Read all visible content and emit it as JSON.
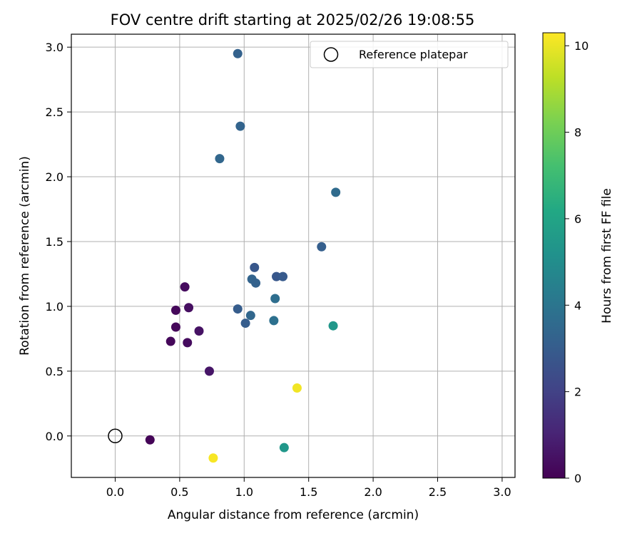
{
  "chart_data": {
    "type": "scatter",
    "title": "FOV centre drift starting at 2025/02/26 19:08:55",
    "xlabel": "Angular distance from reference (arcmin)",
    "ylabel": "Rotation from reference (arcmin)",
    "xlim": [
      -0.34,
      3.1
    ],
    "ylim": [
      -0.32,
      3.1
    ],
    "xticks": [
      "0.0",
      "0.5",
      "1.0",
      "1.5",
      "2.0",
      "2.5",
      "3.0"
    ],
    "yticks": [
      "0.0",
      "0.5",
      "1.0",
      "1.5",
      "2.0",
      "2.5",
      "3.0"
    ],
    "grid": true,
    "legend": {
      "label": "Reference platepar",
      "placement": "top-right"
    },
    "reference_point": {
      "x": 0.0,
      "y": 0.0
    },
    "colorbar": {
      "label": "Hours from first FF file",
      "range": [
        0,
        10.3
      ],
      "ticks": [
        "0",
        "2",
        "4",
        "6",
        "8",
        "10"
      ],
      "colormap": "viridis"
    },
    "points": [
      {
        "x": 0.27,
        "y": -0.03,
        "hours": 0.1
      },
      {
        "x": 0.43,
        "y": 0.73,
        "hours": 0.2
      },
      {
        "x": 0.47,
        "y": 0.84,
        "hours": 0.2
      },
      {
        "x": 0.47,
        "y": 0.97,
        "hours": 0.2
      },
      {
        "x": 0.54,
        "y": 1.15,
        "hours": 0.3
      },
      {
        "x": 0.56,
        "y": 0.72,
        "hours": 0.3
      },
      {
        "x": 0.57,
        "y": 0.99,
        "hours": 0.4
      },
      {
        "x": 0.65,
        "y": 0.81,
        "hours": 0.5
      },
      {
        "x": 0.73,
        "y": 0.5,
        "hours": 0.6
      },
      {
        "x": 0.76,
        "y": -0.17,
        "hours": 10.2
      },
      {
        "x": 0.81,
        "y": 2.14,
        "hours": 3.4
      },
      {
        "x": 0.95,
        "y": 2.95,
        "hours": 3.2
      },
      {
        "x": 0.97,
        "y": 2.39,
        "hours": 3.3
      },
      {
        "x": 0.95,
        "y": 0.98,
        "hours": 3.0
      },
      {
        "x": 1.01,
        "y": 0.87,
        "hours": 3.0
      },
      {
        "x": 1.05,
        "y": 0.93,
        "hours": 3.4
      },
      {
        "x": 1.06,
        "y": 1.21,
        "hours": 3.3
      },
      {
        "x": 1.08,
        "y": 1.3,
        "hours": 2.8
      },
      {
        "x": 1.09,
        "y": 1.18,
        "hours": 3.2
      },
      {
        "x": 1.23,
        "y": 0.89,
        "hours": 3.8
      },
      {
        "x": 1.24,
        "y": 1.06,
        "hours": 3.7
      },
      {
        "x": 1.25,
        "y": 1.23,
        "hours": 2.8
      },
      {
        "x": 1.3,
        "y": 1.23,
        "hours": 2.9
      },
      {
        "x": 1.31,
        "y": -0.09,
        "hours": 5.4
      },
      {
        "x": 1.41,
        "y": 0.37,
        "hours": 10.1
      },
      {
        "x": 1.6,
        "y": 1.46,
        "hours": 3.1
      },
      {
        "x": 1.69,
        "y": 0.85,
        "hours": 5.4
      },
      {
        "x": 1.71,
        "y": 1.88,
        "hours": 3.6
      }
    ]
  }
}
